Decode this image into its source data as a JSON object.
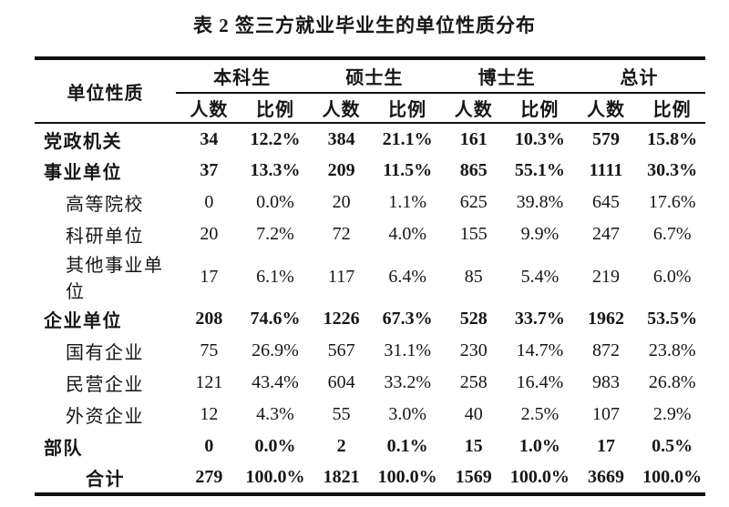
{
  "title": "表 2 签三方就业毕业生的单位性质分布",
  "table": {
    "corner_header": "单位性质",
    "groups": [
      "本科生",
      "硕士生",
      "博士生",
      "总计"
    ],
    "subheaders": {
      "count": "人数",
      "ratio": "比例"
    },
    "rows": [
      {
        "label": "党政机关",
        "style": "bold",
        "values": [
          "34",
          "12.2%",
          "384",
          "21.1%",
          "161",
          "10.3%",
          "579",
          "15.8%"
        ]
      },
      {
        "label": "事业单位",
        "style": "bold",
        "values": [
          "37",
          "13.3%",
          "209",
          "11.5%",
          "865",
          "55.1%",
          "1111",
          "30.3%"
        ]
      },
      {
        "label": "高等院校",
        "style": "indent",
        "values": [
          "0",
          "0.0%",
          "20",
          "1.1%",
          "625",
          "39.8%",
          "645",
          "17.6%"
        ]
      },
      {
        "label": "科研单位",
        "style": "indent",
        "values": [
          "20",
          "7.2%",
          "72",
          "4.0%",
          "155",
          "9.9%",
          "247",
          "6.7%"
        ]
      },
      {
        "label": "其他事业单位",
        "style": "indent",
        "values": [
          "17",
          "6.1%",
          "117",
          "6.4%",
          "85",
          "5.4%",
          "219",
          "6.0%"
        ]
      },
      {
        "label": "企业单位",
        "style": "bold",
        "values": [
          "208",
          "74.6%",
          "1226",
          "67.3%",
          "528",
          "33.7%",
          "1962",
          "53.5%"
        ]
      },
      {
        "label": "国有企业",
        "style": "indent",
        "values": [
          "75",
          "26.9%",
          "567",
          "31.1%",
          "230",
          "14.7%",
          "872",
          "23.8%"
        ]
      },
      {
        "label": "民营企业",
        "style": "indent",
        "values": [
          "121",
          "43.4%",
          "604",
          "33.2%",
          "258",
          "16.4%",
          "983",
          "26.8%"
        ]
      },
      {
        "label": "外资企业",
        "style": "indent",
        "values": [
          "12",
          "4.3%",
          "55",
          "3.0%",
          "40",
          "2.5%",
          "107",
          "2.9%"
        ]
      },
      {
        "label": "部队",
        "style": "bold",
        "values": [
          "0",
          "0.0%",
          "2",
          "0.1%",
          "15",
          "1.0%",
          "17",
          "0.5%"
        ]
      },
      {
        "label": "合计",
        "style": "total",
        "values": [
          "279",
          "100.0%",
          "1821",
          "100.0%",
          "1569",
          "100.0%",
          "3669",
          "100.0%"
        ]
      }
    ]
  }
}
